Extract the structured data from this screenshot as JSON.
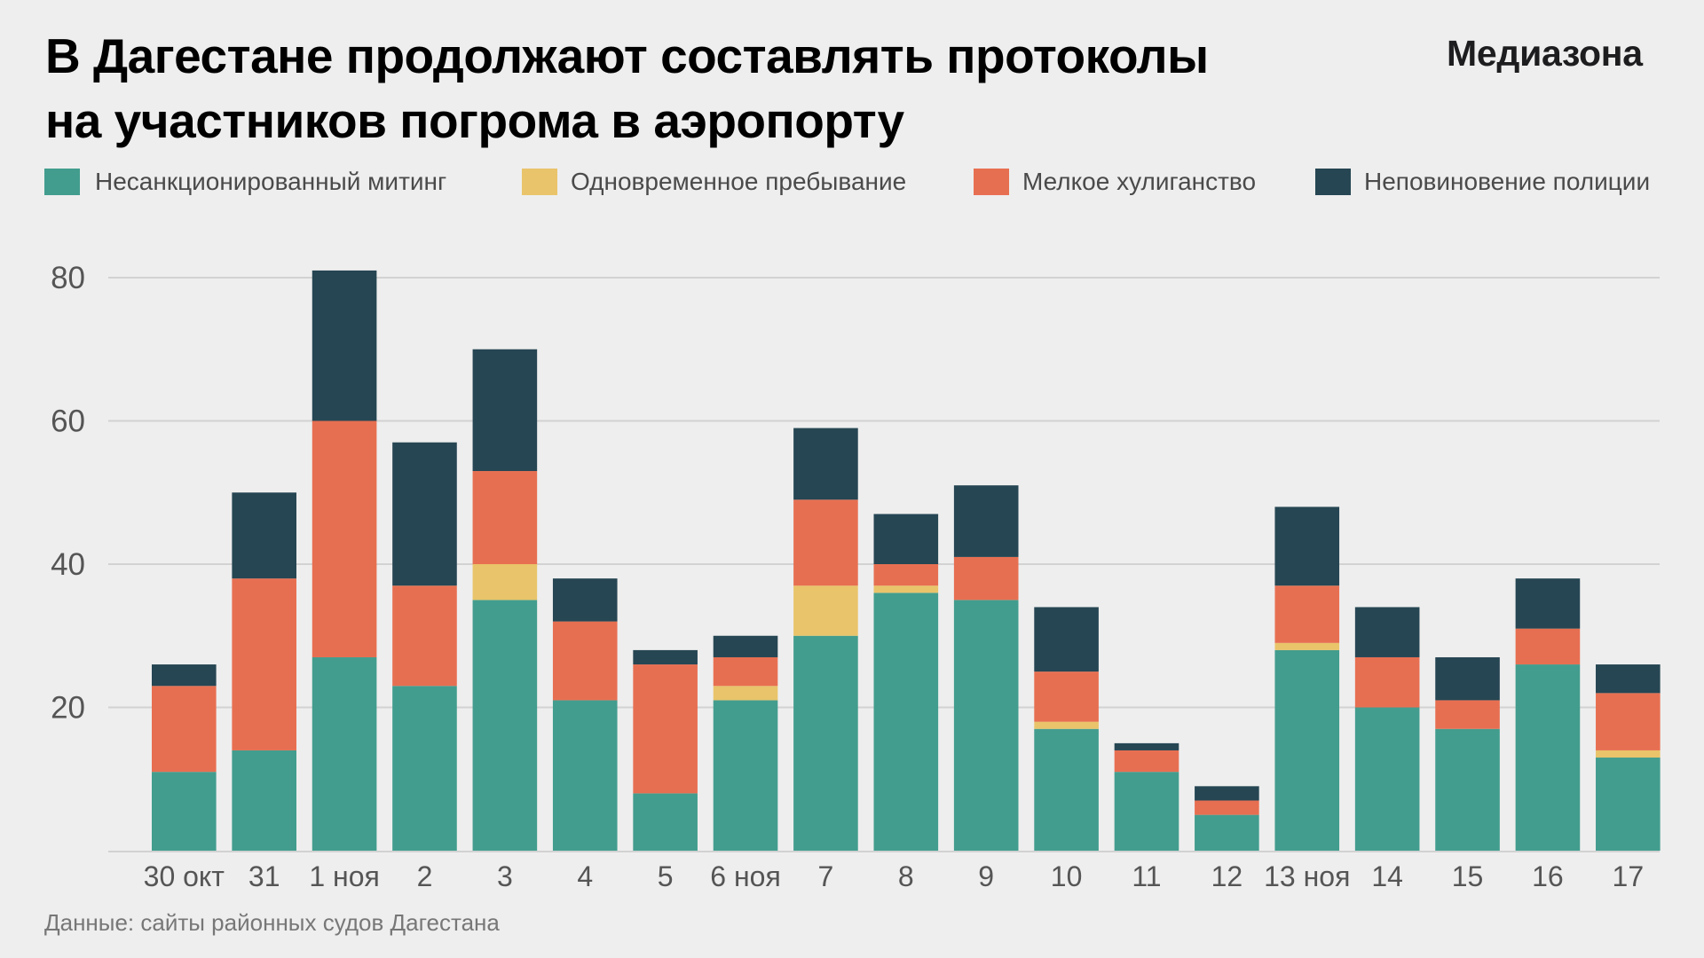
{
  "header": {
    "title_lines": [
      "В Дагестане продолжают составлять протоколы",
      "на участников погрома в аэропорту"
    ],
    "logo_text": "Медиазона"
  },
  "footer": {
    "source": "Данные: сайты районных судов Дагестана"
  },
  "colors": {
    "background": "#eeeeee",
    "grid": "#d2d2d2",
    "tick_text": "#555555"
  },
  "chart_data": {
    "type": "bar",
    "stacked": true,
    "title": "В Дагестане продолжают составлять протоколы на участников погрома в аэропорту",
    "xlabel": "",
    "ylabel": "",
    "ylim": [
      0,
      80
    ],
    "yticks": [
      20,
      40,
      60,
      80
    ],
    "grid": true,
    "legend_position": "top-left",
    "categories": [
      "30 окт",
      "31",
      "1 ноя",
      "2",
      "3",
      "4",
      "5",
      "6 ноя",
      "7",
      "8",
      "9",
      "10",
      "11",
      "12",
      "13 ноя",
      "14",
      "15",
      "16",
      "17"
    ],
    "series": [
      {
        "name": "Несанкционированный митинг",
        "color": "#429d8e",
        "values": [
          11,
          14,
          27,
          23,
          35,
          21,
          8,
          21,
          30,
          36,
          35,
          17,
          11,
          5,
          28,
          20,
          17,
          26,
          13
        ]
      },
      {
        "name": "Одновременное пребывание",
        "color": "#e9c46a",
        "values": [
          0,
          0,
          0,
          0,
          5,
          0,
          0,
          2,
          7,
          1,
          0,
          1,
          0,
          0,
          1,
          0,
          0,
          0,
          1
        ]
      },
      {
        "name": "Мелкое хулиганство",
        "color": "#e76f51",
        "values": [
          12,
          24,
          33,
          14,
          13,
          11,
          18,
          4,
          12,
          3,
          6,
          7,
          3,
          2,
          8,
          7,
          4,
          5,
          8
        ]
      },
      {
        "name": "Неповиновение полиции",
        "color": "#264653",
        "values": [
          3,
          12,
          21,
          20,
          17,
          6,
          2,
          3,
          10,
          7,
          10,
          9,
          1,
          2,
          11,
          7,
          6,
          7,
          4
        ]
      }
    ]
  }
}
